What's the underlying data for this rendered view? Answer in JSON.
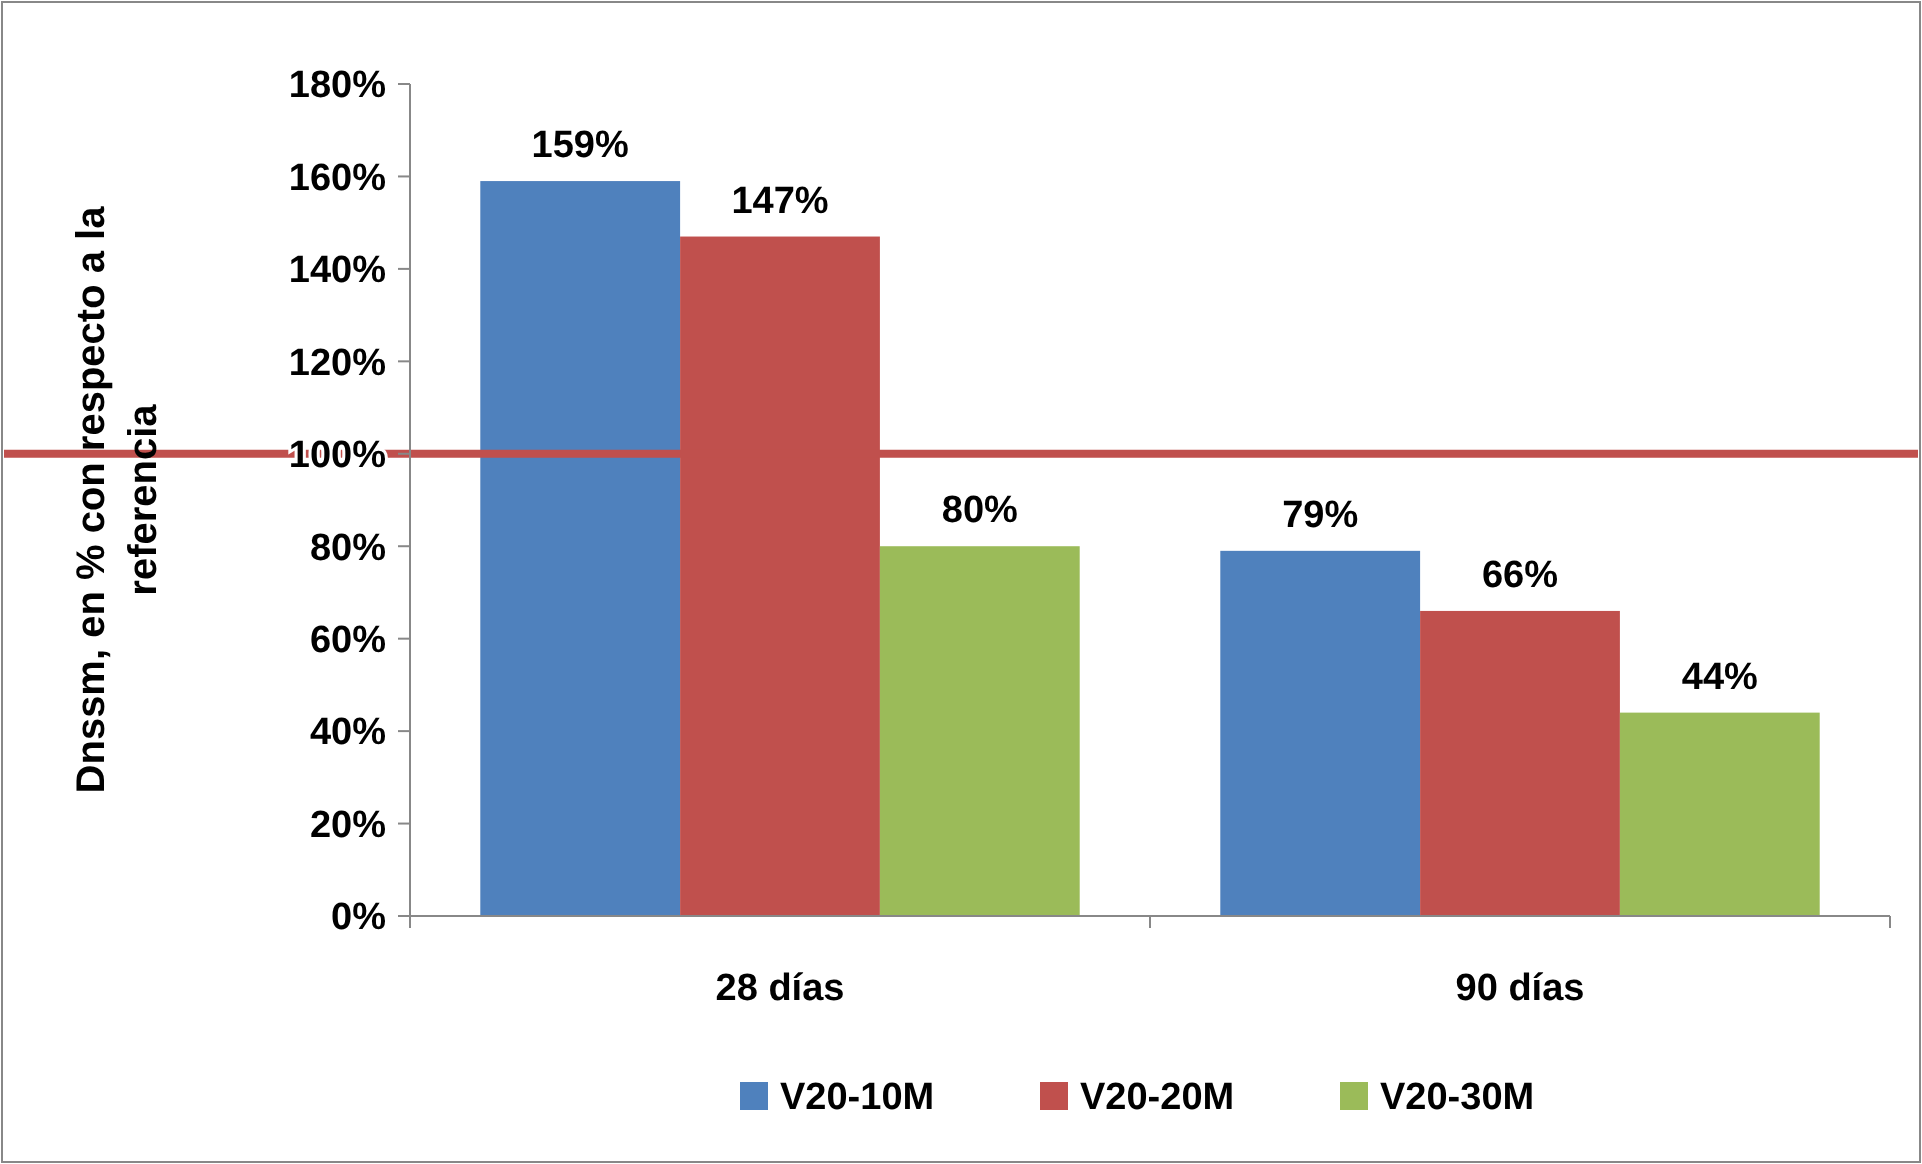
{
  "chart_data": {
    "type": "bar",
    "ylabel": "Dnssm, en % con respecto a la referencia",
    "categories": [
      "28 días",
      "90 días"
    ],
    "series": [
      {
        "name": "V20-10M",
        "color": "#4f81bd",
        "values": [
          159,
          79
        ],
        "value_labels": [
          "159%",
          "79%"
        ]
      },
      {
        "name": "V20-20M",
        "color": "#c0504d",
        "values": [
          147,
          66
        ],
        "value_labels": [
          "147%",
          "66%"
        ]
      },
      {
        "name": "V20-30M",
        "color": "#9bbb59",
        "values": [
          80,
          44
        ],
        "value_labels": [
          "80%",
          "44%"
        ]
      }
    ],
    "ylim": [
      0,
      180
    ],
    "yticks": [
      {
        "value": 0,
        "label": "0%"
      },
      {
        "value": 20,
        "label": "20%"
      },
      {
        "value": 40,
        "label": "40%"
      },
      {
        "value": 60,
        "label": "60%"
      },
      {
        "value": 80,
        "label": "80%"
      },
      {
        "value": 100,
        "label": "100%"
      },
      {
        "value": 120,
        "label": "120%"
      },
      {
        "value": 140,
        "label": "140%"
      },
      {
        "value": 160,
        "label": "160%"
      },
      {
        "value": 180,
        "label": "180%"
      }
    ],
    "ref_lines": [
      {
        "axis": "y",
        "value": 100,
        "color": "#c0504d"
      }
    ],
    "grid": false,
    "legend": "bottom"
  }
}
